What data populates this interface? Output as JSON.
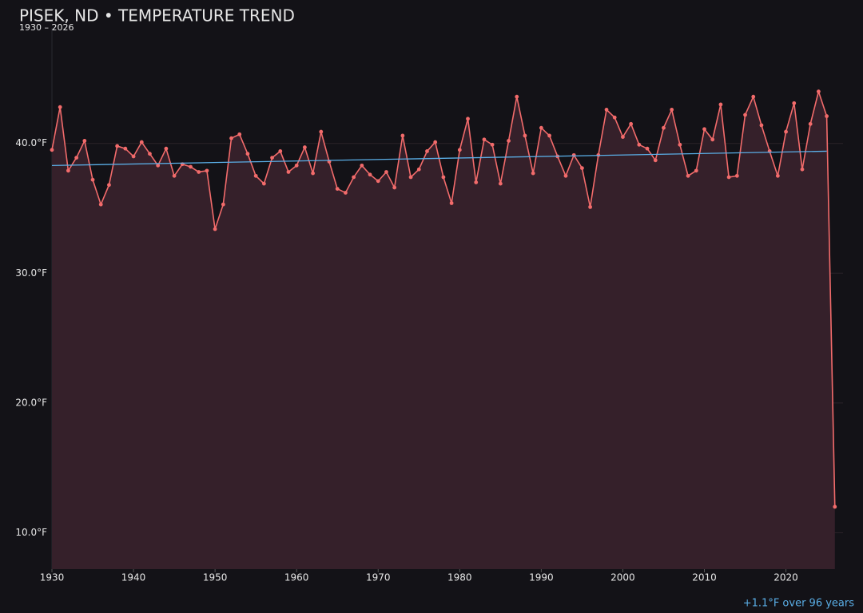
{
  "chart_data": {
    "type": "line",
    "title": "PISEK, ND • TEMPERATURE TREND",
    "subtitle": "1930 – 2026",
    "annotation": "+1.1°F over 96 years",
    "x": [
      1930,
      1931,
      1932,
      1933,
      1934,
      1935,
      1936,
      1937,
      1938,
      1939,
      1940,
      1941,
      1942,
      1943,
      1944,
      1945,
      1946,
      1947,
      1948,
      1949,
      1950,
      1951,
      1952,
      1953,
      1954,
      1955,
      1956,
      1957,
      1958,
      1959,
      1960,
      1961,
      1962,
      1963,
      1964,
      1965,
      1966,
      1967,
      1968,
      1969,
      1970,
      1971,
      1972,
      1973,
      1974,
      1975,
      1976,
      1977,
      1978,
      1979,
      1980,
      1981,
      1982,
      1983,
      1984,
      1985,
      1986,
      1987,
      1988,
      1989,
      1990,
      1991,
      1992,
      1993,
      1994,
      1995,
      1996,
      1997,
      1998,
      1999,
      2000,
      2001,
      2002,
      2003,
      2004,
      2005,
      2006,
      2007,
      2008,
      2009,
      2010,
      2011,
      2012,
      2013,
      2014,
      2015,
      2016,
      2017,
      2018,
      2019,
      2020,
      2021,
      2022,
      2023,
      2024,
      2025,
      2026
    ],
    "series": [
      {
        "color": "#f26b6b",
        "fill": "#35202a",
        "values": [
          39.5,
          42.8,
          37.9,
          38.9,
          40.2,
          37.2,
          35.3,
          36.8,
          39.8,
          39.6,
          39.0,
          40.1,
          39.2,
          38.3,
          39.6,
          37.5,
          38.4,
          38.2,
          37.8,
          37.9,
          33.4,
          35.3,
          40.4,
          40.7,
          39.2,
          37.5,
          36.9,
          38.9,
          39.4,
          37.8,
          38.3,
          39.7,
          37.7,
          40.9,
          38.6,
          36.5,
          36.2,
          37.4,
          38.3,
          37.6,
          37.1,
          37.8,
          36.6,
          40.6,
          37.4,
          38.0,
          39.4,
          40.1,
          37.4,
          35.4,
          39.5,
          41.9,
          37.0,
          40.3,
          39.9,
          36.9,
          40.2,
          43.6,
          40.6,
          37.7,
          41.2,
          40.6,
          39.0,
          37.5,
          39.1,
          38.1,
          35.1,
          39.1,
          42.6,
          42.0,
          40.5,
          41.5,
          39.9,
          39.6,
          38.7,
          41.2,
          42.6,
          39.9,
          37.5,
          37.9,
          41.1,
          40.3,
          43.0,
          37.4,
          37.5,
          42.2,
          43.6,
          41.4,
          39.4,
          37.5,
          40.9,
          43.1,
          38.0,
          41.5,
          44.0,
          42.1,
          12.0
        ]
      }
    ],
    "trend": {
      "color": "#5aaee6",
      "x": [
        1930,
        2025
      ],
      "values": [
        38.3,
        39.4
      ]
    },
    "xlim": [
      1930,
      2027
    ],
    "xticks": [
      1930,
      1940,
      1950,
      1960,
      1970,
      1980,
      1990,
      2000,
      2010,
      2020
    ],
    "ylim": [
      7.2,
      48.9
    ],
    "yticks": [
      {
        "value": 10,
        "label": "10.0°F"
      },
      {
        "value": 20,
        "label": "20.0°F"
      },
      {
        "value": 30,
        "label": "30.0°F"
      },
      {
        "value": 40,
        "label": "40.0°F"
      }
    ],
    "grid": true
  }
}
